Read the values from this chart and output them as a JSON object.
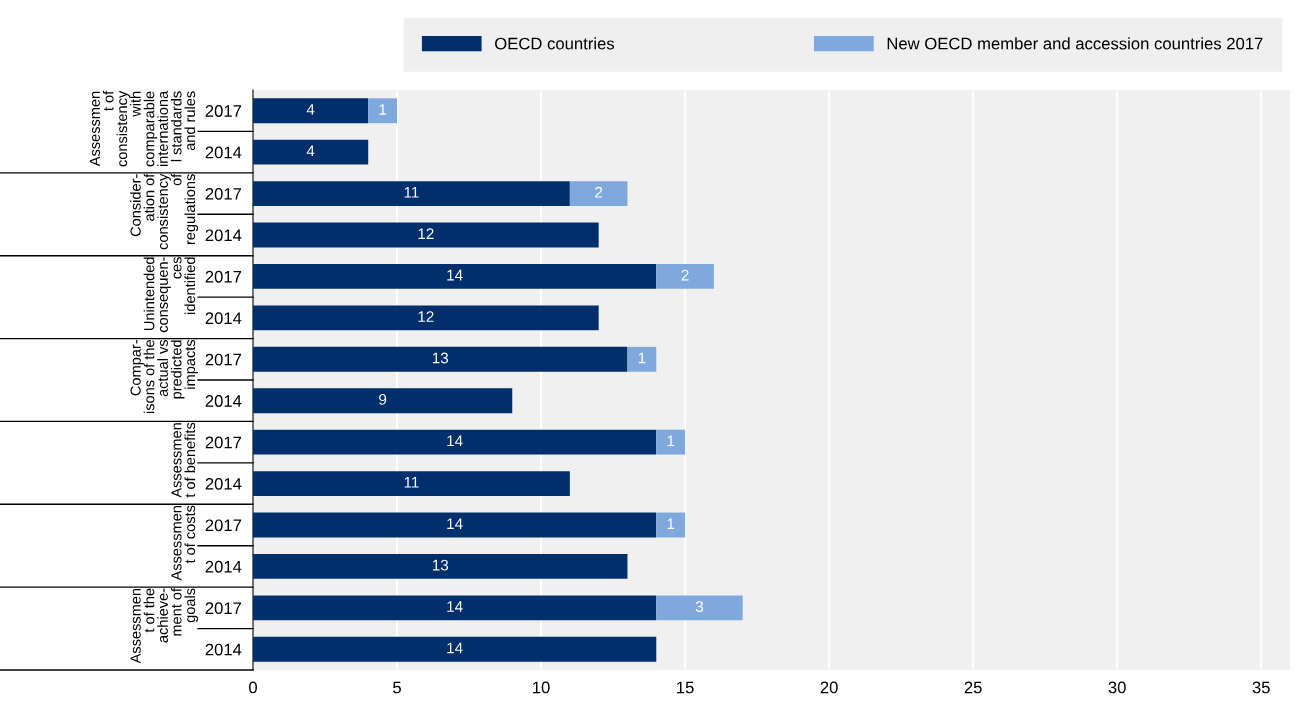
{
  "chart_data": {
    "type": "bar",
    "orientation": "horizontal",
    "stacked": true,
    "categories": [
      "2017",
      "2014",
      "2017",
      "2014",
      "2017",
      "2014",
      "2017",
      "2014",
      "2017",
      "2014",
      "2017",
      "2014",
      "2017",
      "2014"
    ],
    "series": [
      {
        "name": "OECD countries",
        "color": "#002f6c",
        "values": [
          4,
          4,
          11,
          12,
          14,
          12,
          13,
          9,
          14,
          11,
          14,
          13,
          14,
          14
        ]
      },
      {
        "name": "New OECD member and accession countries 2017",
        "color": "#7fa8dc",
        "values": [
          1,
          null,
          2,
          null,
          2,
          null,
          1,
          null,
          1,
          null,
          1,
          null,
          3,
          null
        ]
      }
    ],
    "annotations": [
      "Assessmen\nt of\nconsistency\nwith\ncomparable\ninternationa\nl standards\nand rules",
      "Consider-\nation of\nconsistency\nof\nregulations",
      "Unintended\nconsequen-\nces\nidentified",
      "Compar-\nisons of the\nactual vs\npredicted\nimpacts",
      "Assessmen\nt of benefits",
      "Assessmen\nt of costs",
      "Assessmen\nt of the\nachieve-\nment of\ngoals"
    ],
    "xlim": [
      0,
      36
    ],
    "xticks": [
      0,
      5,
      10,
      15,
      20,
      25,
      30,
      35
    ],
    "grid": "x",
    "legend": "top",
    "data_labels": true
  }
}
